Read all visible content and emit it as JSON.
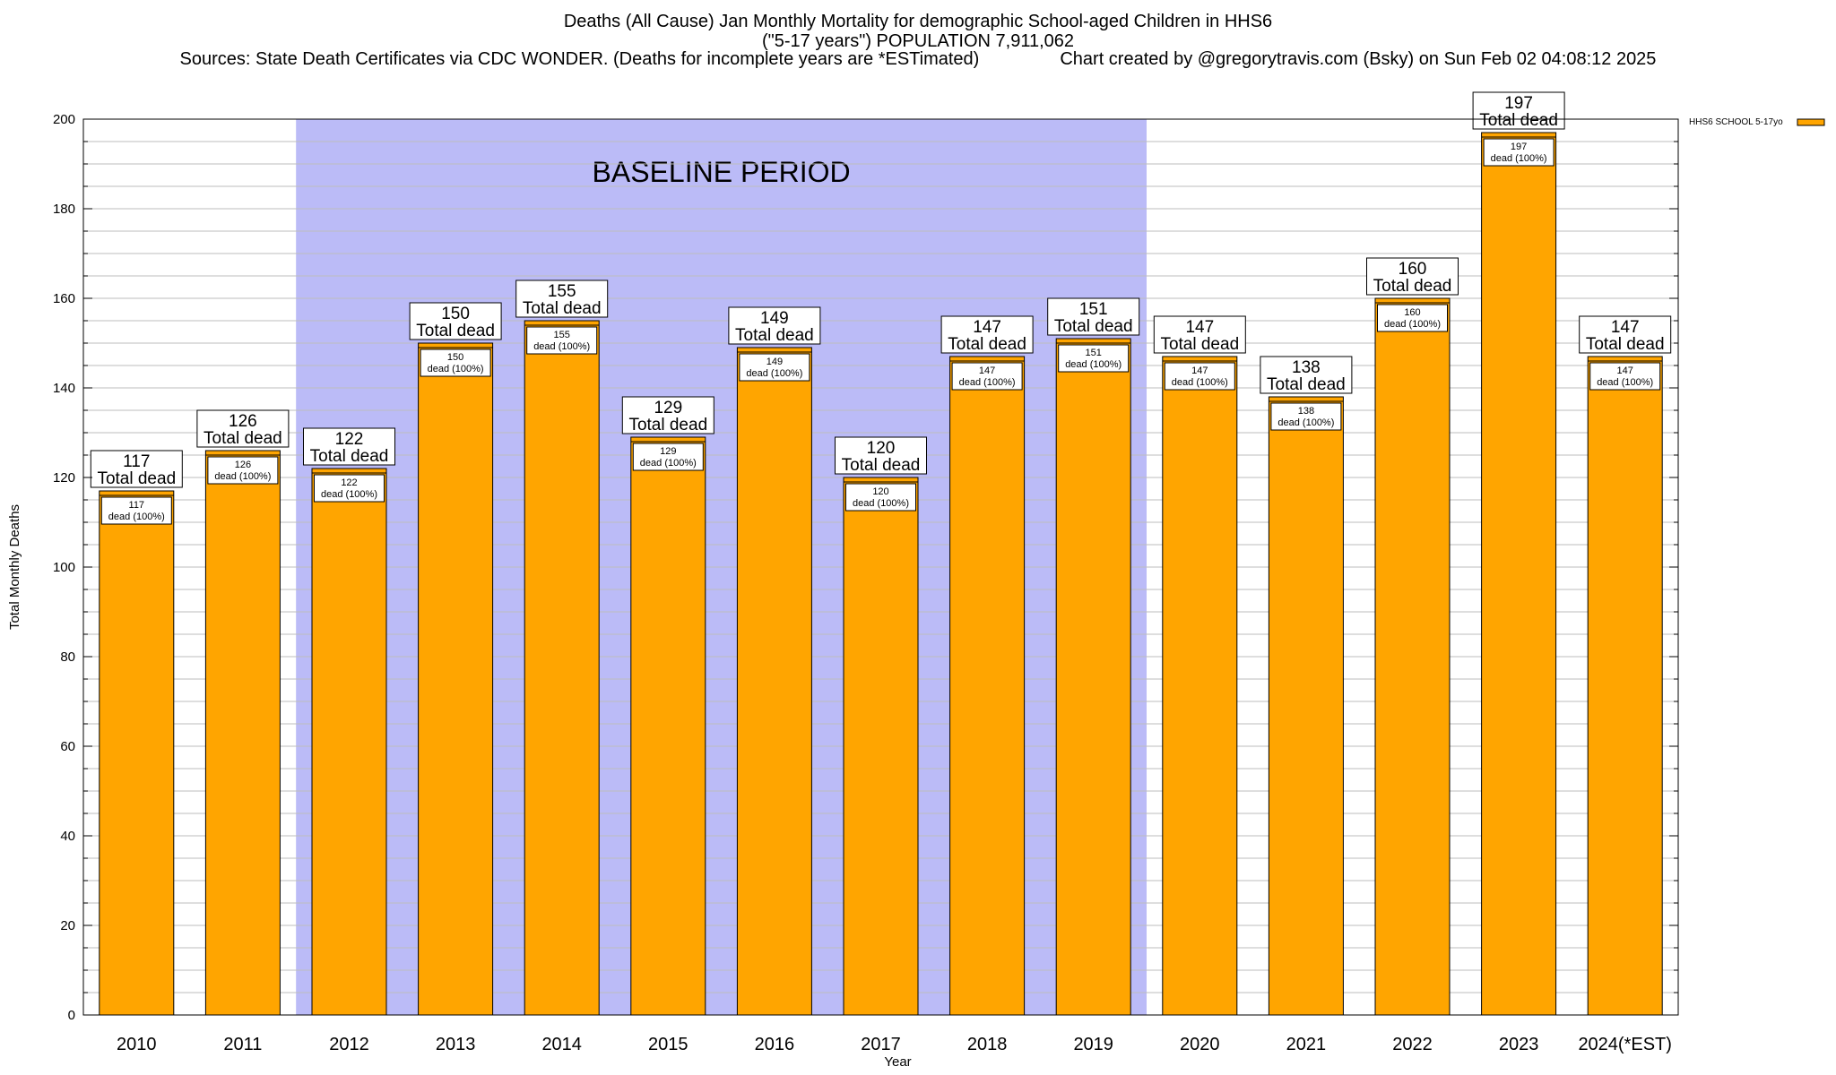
{
  "chart_data": {
    "type": "bar",
    "title": "Deaths (All Cause) Jan Monthly Mortality for demographic School-aged Children in HHS6",
    "subtitle": "(\"5-17 years\") POPULATION 7,911,062",
    "sources": "Sources: State Death Certificates via CDC WONDER. (Deaths for incomplete years are *ESTimated)",
    "credit": "Chart created by @gregorytravis.com (Bsky) on Sun Feb 02 04:08:12 2025",
    "xlabel": "Year",
    "ylabel": "Total Monthly Deaths",
    "ylim": [
      0,
      200
    ],
    "yticks": [
      0,
      20,
      40,
      60,
      80,
      100,
      120,
      140,
      160,
      180,
      200
    ],
    "grid": true,
    "legend_position": "top-right",
    "categories": [
      "2010",
      "2011",
      "2012",
      "2013",
      "2014",
      "2015",
      "2016",
      "2017",
      "2018",
      "2019",
      "2020",
      "2021",
      "2022",
      "2023",
      "2024(*EST)"
    ],
    "series": [
      {
        "name": "HHS6 SCHOOL 5-17yo",
        "color": "#ffa500",
        "values": [
          117,
          126,
          122,
          150,
          155,
          129,
          149,
          120,
          147,
          151,
          147,
          138,
          160,
          197,
          147
        ]
      }
    ],
    "top_label_suffix": "Total dead",
    "inner_label_suffix": "dead (100%)",
    "baseline": {
      "label": "BASELINE PERIOD",
      "start": "2012",
      "end": "2019",
      "color": "#bbbbf7"
    }
  }
}
